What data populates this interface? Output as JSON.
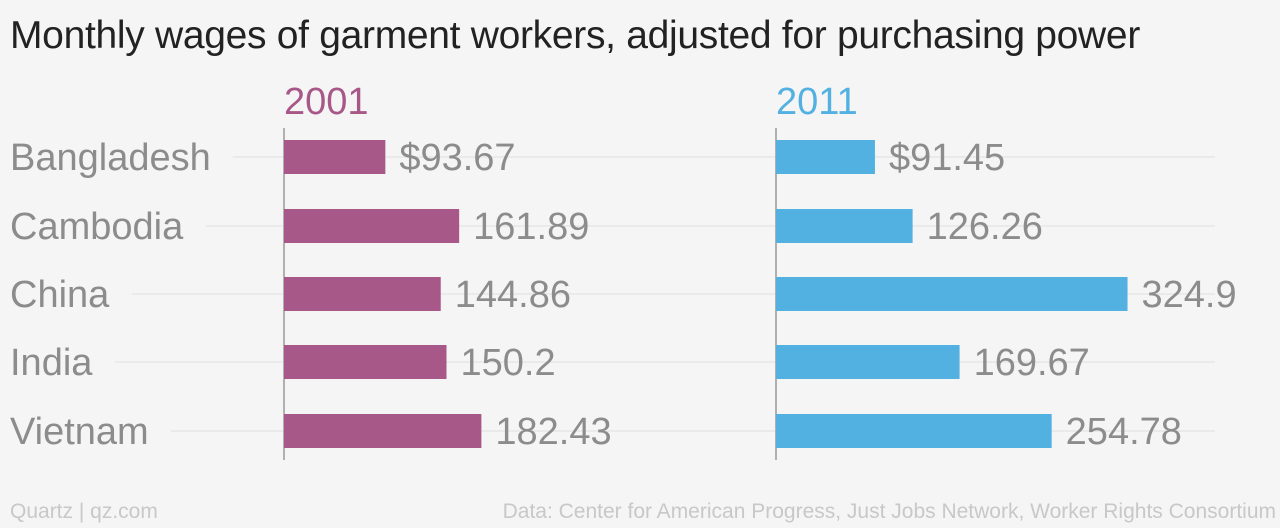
{
  "chart_data": {
    "type": "bar",
    "orientation": "horizontal",
    "title": "Monthly wages of garment workers, adjusted for purchasing power",
    "categories": [
      "Bangladesh",
      "Cambodia",
      "China",
      "India",
      "Vietnam"
    ],
    "series": [
      {
        "name": "2001",
        "color": "#a85888",
        "values": [
          93.67,
          161.89,
          144.86,
          150.2,
          182.43
        ],
        "labels": [
          "$93.67",
          "161.89",
          "144.86",
          "150.2",
          "182.43"
        ]
      },
      {
        "name": "2011",
        "color": "#53b1e2",
        "values": [
          91.45,
          126.26,
          324.9,
          169.67,
          254.78
        ],
        "labels": [
          "$91.45",
          "126.26",
          "324.9",
          "169.67",
          "254.78"
        ]
      }
    ],
    "layout": "small-multiples-side-by-side",
    "grid": true,
    "legend": "none"
  },
  "footer": {
    "credit": "Quartz | qz.com",
    "source": "Data: Center for American Progress, Just Jobs Network, Worker Rights Consortium"
  }
}
